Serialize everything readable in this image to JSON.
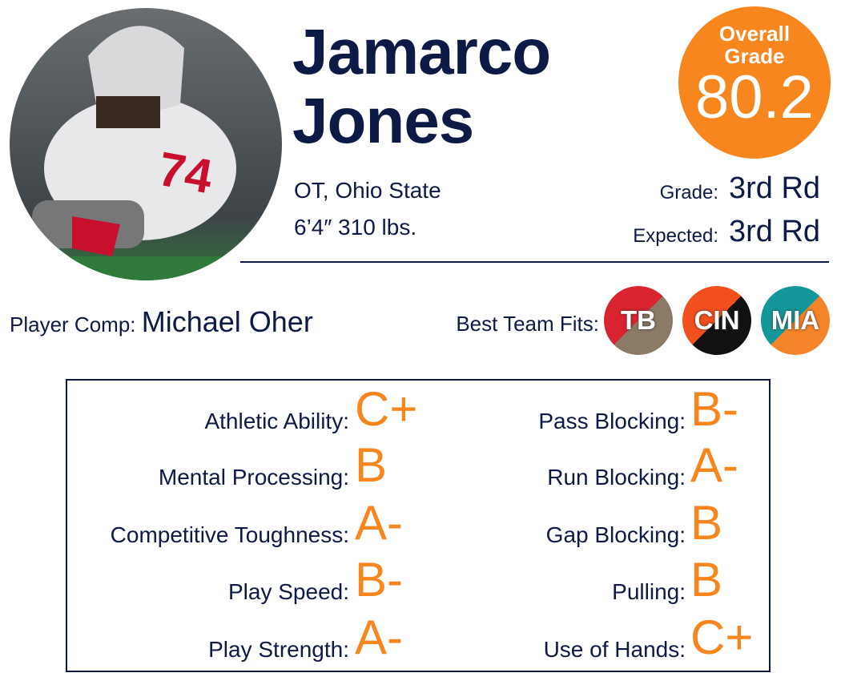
{
  "header": {
    "first_name": "Jamarco",
    "last_name": "Jones",
    "position": "OT, Ohio State",
    "measurements": "6’4″ 310 lbs."
  },
  "overall": {
    "label": "Overall Grade",
    "value": 80.2
  },
  "draft": {
    "grade": {
      "label": "Grade:",
      "value": "3rd Rd"
    },
    "expected": {
      "label": "Expected:",
      "value": "3rd Rd"
    }
  },
  "comp": {
    "label": "Player Comp:",
    "value": "Michael Oher"
  },
  "team_fits": {
    "label": "Best Team Fits:",
    "teams": [
      "TB",
      "CIN",
      "MIA"
    ]
  },
  "grades": {
    "left": [
      [
        "Athletic Ability:",
        "C+"
      ],
      [
        "Mental Processing:",
        "B"
      ],
      [
        "Competitive Toughness:",
        "A-"
      ],
      [
        "Play Speed:",
        "B-"
      ],
      [
        "Play Strength:",
        "A-"
      ]
    ],
    "right": [
      [
        "Pass Blocking:",
        "B-"
      ],
      [
        "Run Blocking:",
        "A-"
      ],
      [
        "Gap Blocking:",
        "B"
      ],
      [
        "Pulling:",
        "B"
      ],
      [
        "Use of Hands:",
        "C+"
      ]
    ]
  }
}
